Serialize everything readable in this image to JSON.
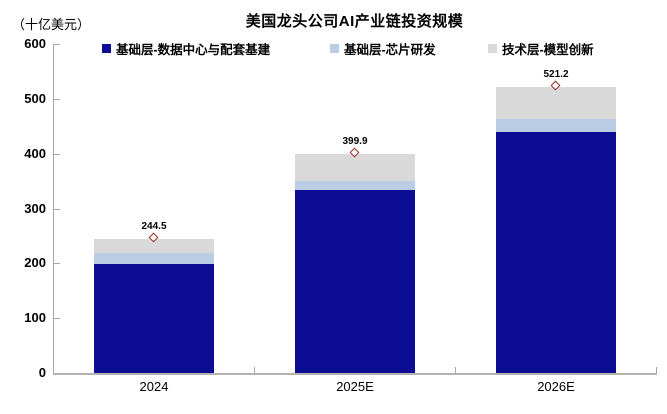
{
  "header": {
    "title": "美国龙头公司AI产业链投资规模",
    "unit_label": "（十亿美元）"
  },
  "chart_data": {
    "type": "bar",
    "stacked": true,
    "title": "美国龙头公司AI产业链投资规模",
    "ylabel": "（十亿美元）",
    "categories": [
      "2024",
      "2025E",
      "2026E"
    ],
    "series": [
      {
        "name": "基础层-数据中心与配套基建",
        "color": "#0d0d93",
        "values": [
          199.0,
          333.0,
          440.0
        ]
      },
      {
        "name": "基础层-芯片研发",
        "color": "#b9cde4",
        "values": [
          20.0,
          17.0,
          23.0
        ]
      },
      {
        "name": "技术层-模型创新",
        "color": "#d9d9d9",
        "values": [
          25.5,
          49.9,
          58.2
        ]
      }
    ],
    "totals": [
      244.5,
      399.9,
      521.2
    ],
    "total_labels": [
      "244.5",
      "399.9",
      "521.2"
    ],
    "total_marker": {
      "shape": "diamond",
      "stroke": "#9c2b21",
      "fill": "#ffffff"
    },
    "ylim": [
      0,
      600
    ],
    "ytick_step": 100,
    "yticks": [
      0,
      100,
      200,
      300,
      400,
      500,
      600
    ],
    "grid": false,
    "legend_position": "top",
    "axis_color": "#a6a6a6",
    "text_color": "#000000"
  }
}
